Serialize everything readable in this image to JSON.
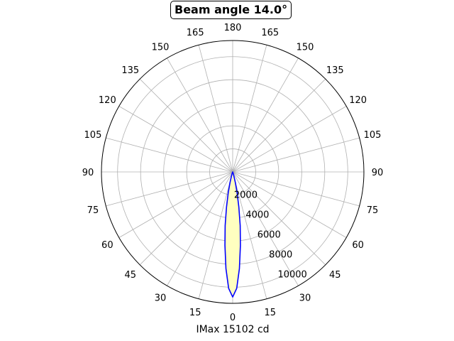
{
  "chart_data": {
    "type": "polar-line",
    "title": "Beam angle 14.0°",
    "xlabel": "IMax 15102 cd",
    "angular_ticks": [
      0,
      15,
      30,
      45,
      60,
      75,
      90,
      105,
      120,
      135,
      150,
      165,
      180,
      165,
      150,
      135,
      120,
      105,
      90,
      75,
      60,
      45,
      30,
      15
    ],
    "radial_ticks": [
      2000,
      4000,
      6000,
      8000,
      10000
    ],
    "rlim": [
      0,
      11400
    ],
    "grid": true,
    "zero_location": "bottom",
    "series": [
      {
        "color": "#0000ff",
        "fill": "#ffffc0",
        "angles_deg": [
          -20,
          -18,
          -16,
          -14,
          -12,
          -10,
          -8,
          -6,
          -4,
          -2,
          0,
          2,
          4,
          6,
          8,
          10,
          12,
          14,
          16,
          18,
          20
        ],
        "values": [
          80,
          200,
          480,
          1000,
          1880,
          3100,
          4700,
          6400,
          8400,
          10100,
          10850,
          10100,
          8400,
          6400,
          4700,
          3100,
          1880,
          1000,
          480,
          200,
          80
        ]
      }
    ]
  }
}
